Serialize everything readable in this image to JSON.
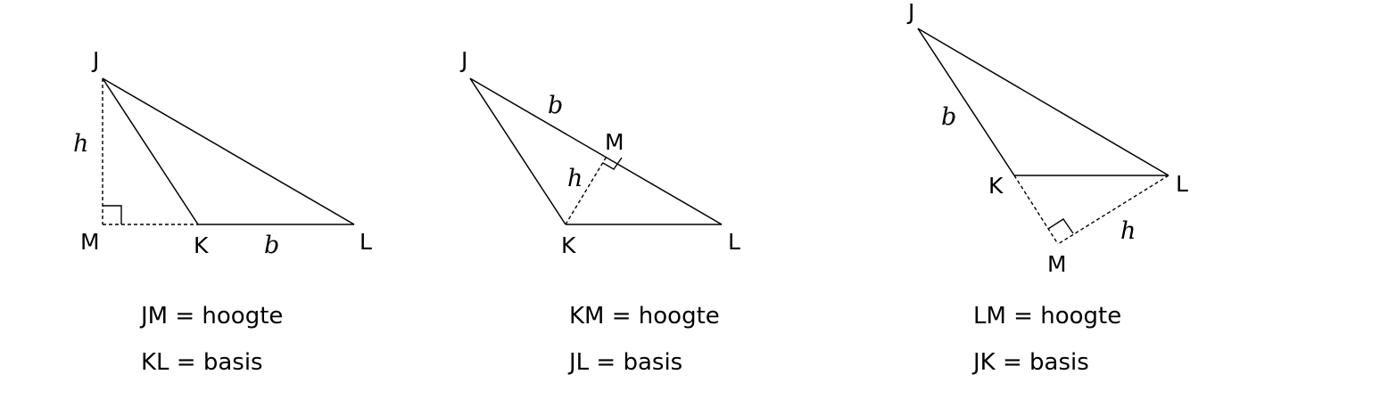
{
  "figures": [
    {
      "points": {
        "J": "J",
        "K": "K",
        "L": "L",
        "M": "M"
      },
      "vars": {
        "h": "h",
        "b": "b"
      },
      "captions": [
        "JM = hoogte",
        "KL = basis"
      ]
    },
    {
      "points": {
        "J": "J",
        "K": "K",
        "L": "L",
        "M": "M"
      },
      "vars": {
        "h": "h",
        "b": "b"
      },
      "captions": [
        "KM = hoogte",
        "JL = basis"
      ]
    },
    {
      "points": {
        "J": "J",
        "K": "K",
        "L": "L",
        "M": "M"
      },
      "vars": {
        "h": "h",
        "b": "b"
      },
      "captions": [
        "LM = hoogte",
        "JK = basis"
      ]
    }
  ]
}
